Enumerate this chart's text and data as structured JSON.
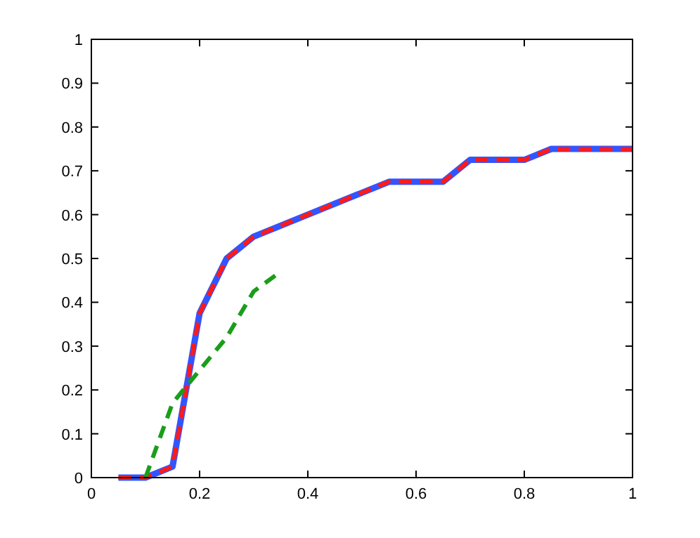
{
  "chart_data": {
    "type": "line",
    "x": [
      0.05,
      0.1,
      0.15,
      0.2,
      0.25,
      0.3,
      0.55,
      0.65,
      0.7,
      0.8,
      0.85,
      1
    ],
    "series": [
      {
        "color": "#3355ff",
        "line_style": "solid",
        "values": [
          0,
          0,
          0.025,
          0.375,
          0.5,
          0.55,
          0.675,
          0.675,
          0.725,
          0.725,
          0.75,
          0.75
        ]
      },
      {
        "color": "#ff1a1a",
        "line_style": "dashed",
        "values": [
          0,
          0,
          0.025,
          0.375,
          0.5,
          0.55,
          0.675,
          0.675,
          0.725,
          0.725,
          0.75,
          0.75
        ]
      },
      {
        "color": "#1a9e1a",
        "line_style": "dashed",
        "x": [
          0.1,
          0.15,
          0.2,
          0.25,
          0.3,
          0.35
        ],
        "values": [
          0,
          0.17,
          0.245,
          0.32,
          0.425,
          0.47
        ]
      }
    ],
    "xlim": [
      0,
      1
    ],
    "xticks": [
      0,
      0.2,
      0.4,
      0.6,
      0.8,
      1
    ],
    "ylim": [
      0,
      1
    ],
    "yticks": [
      0,
      0.1,
      0.2,
      0.3,
      0.4,
      0.5,
      0.6,
      0.7,
      0.8,
      0.9,
      1
    ],
    "grid": false,
    "marker": "none"
  }
}
